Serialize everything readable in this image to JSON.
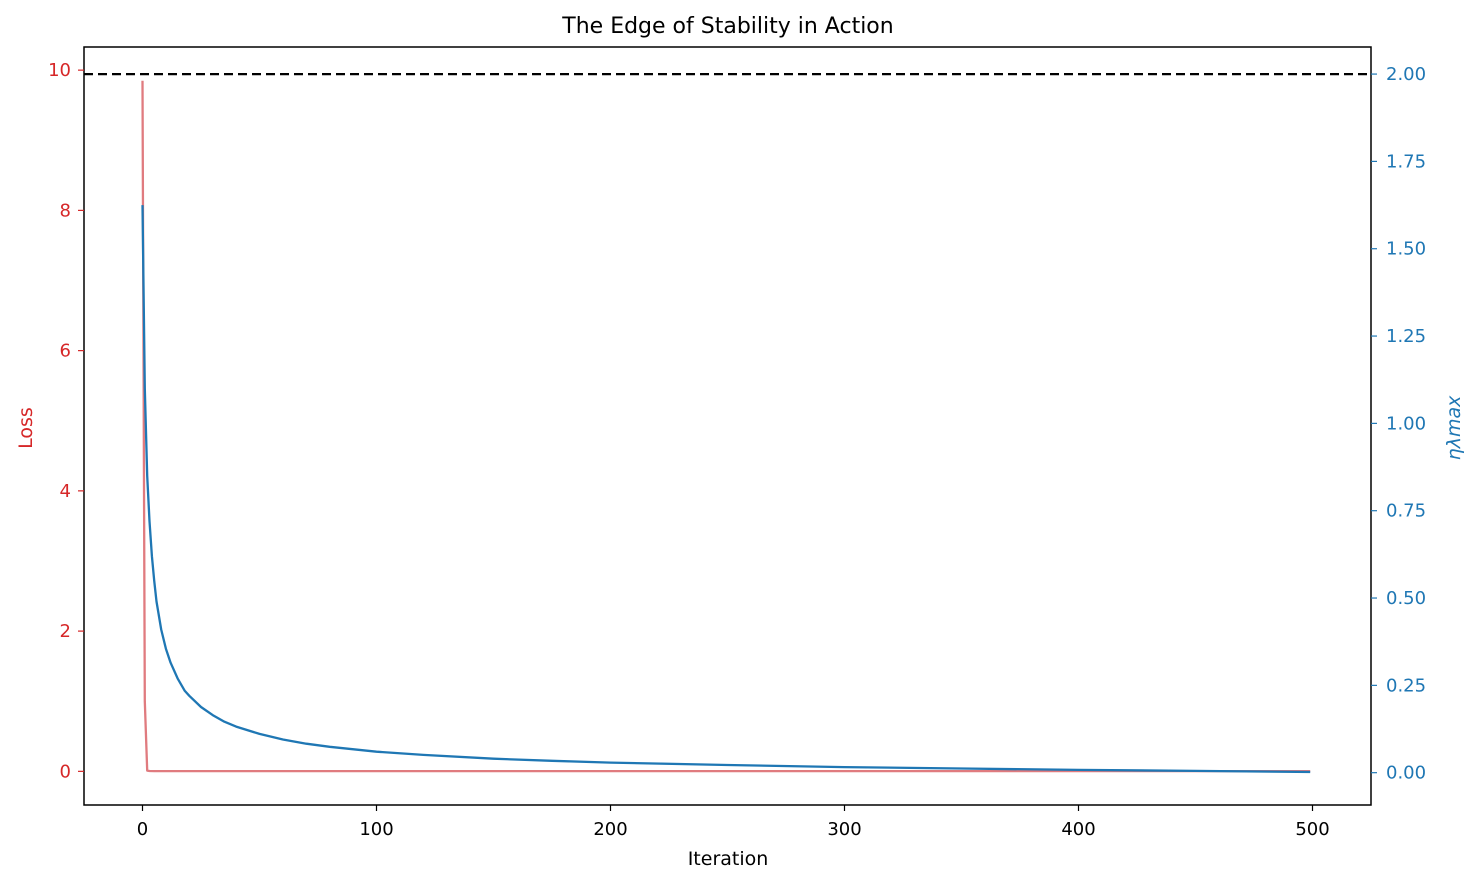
{
  "chart_data": {
    "type": "line",
    "title": "The Edge of Stability in Action",
    "xlabel": "Iteration",
    "ylabel_left": "Loss",
    "ylabel_right": "ηλmax",
    "xlim": [
      -25,
      525
    ],
    "ylim_left": [
      -0.48,
      10.33
    ],
    "ylim_right": [
      -0.0925,
      2.0775
    ],
    "x_ticks": [
      0,
      100,
      200,
      300,
      400,
      500
    ],
    "y_ticks_left": [
      0,
      2,
      4,
      6,
      8,
      10
    ],
    "y_ticks_right": [
      "0.00",
      "0.25",
      "0.50",
      "0.75",
      "1.00",
      "1.25",
      "1.50",
      "1.75",
      "2.00"
    ],
    "grid": false,
    "colors": {
      "loss": "#e07b7f",
      "loss_axis": "#d62728",
      "sharpness": "#1f77b4",
      "reference": "#000000"
    },
    "series": [
      {
        "axis": "left",
        "x": [
          0,
          1,
          2,
          3,
          5,
          10,
          50,
          100,
          200,
          300,
          400,
          499
        ],
        "values": [
          9.85,
          1.0,
          0.01,
          0.005,
          0.004,
          0.004,
          0.004,
          0.004,
          0.004,
          0.004,
          0.004,
          0.004
        ]
      },
      {
        "axis": "right",
        "x": [
          0,
          1,
          2,
          3,
          4,
          5,
          6,
          8,
          10,
          12,
          15,
          18,
          20,
          25,
          30,
          35,
          40,
          50,
          60,
          70,
          80,
          100,
          120,
          150,
          175,
          200,
          250,
          300,
          350,
          400,
          450,
          499
        ],
        "values": [
          1.625,
          1.1,
          0.85,
          0.72,
          0.62,
          0.55,
          0.49,
          0.41,
          0.355,
          0.315,
          0.27,
          0.235,
          0.22,
          0.188,
          0.165,
          0.146,
          0.132,
          0.111,
          0.095,
          0.083,
          0.074,
          0.06,
          0.051,
          0.04,
          0.034,
          0.029,
          0.022,
          0.016,
          0.012,
          0.008,
          0.005,
          0.002
        ]
      },
      {
        "axis": "right",
        "style": "dashed",
        "x": [
          -25,
          525
        ],
        "values": [
          2.0,
          2.0
        ]
      }
    ]
  }
}
